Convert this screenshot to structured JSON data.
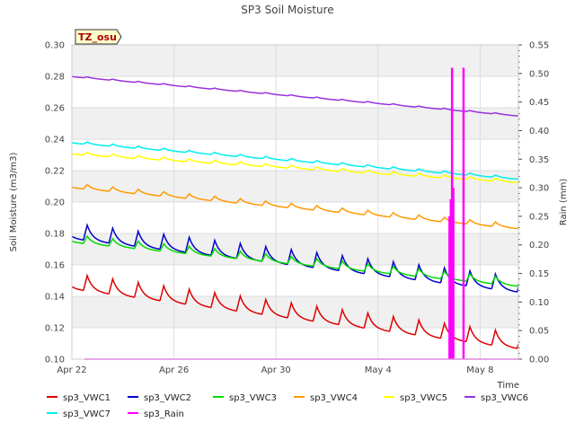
{
  "chart_data": {
    "type": "line",
    "title": "SP3 Soil Moisture",
    "site_label": "TZ_osu",
    "xlabel": "Time",
    "ylabel": "Soil Moisture (m3/m3)",
    "y2label": "Rain (mm)",
    "ylim": [
      0.1,
      0.3
    ],
    "y2lim": [
      0.0,
      0.55
    ],
    "xlim": [
      0,
      17.5
    ],
    "x_ticks": [
      {
        "x": 0,
        "label": "Apr 22"
      },
      {
        "x": 4,
        "label": "Apr 26"
      },
      {
        "x": 8,
        "label": "Apr 30"
      },
      {
        "x": 12,
        "label": "May 4"
      },
      {
        "x": 16,
        "label": "May 8"
      }
    ],
    "y_ticks": [
      "0.10",
      "0.12",
      "0.14",
      "0.16",
      "0.18",
      "0.20",
      "0.22",
      "0.24",
      "0.26",
      "0.28",
      "0.30"
    ],
    "y2_ticks": [
      "0.00",
      "0.05",
      "0.10",
      "0.15",
      "0.20",
      "0.25",
      "0.30",
      "0.35",
      "0.40",
      "0.45",
      "0.50",
      "0.55"
    ],
    "grid": true,
    "legend_position": "bottom",
    "series": [
      {
        "name": "sp3_VWC1",
        "color": "#dd0000",
        "kind": "diurnal",
        "start": 0.148,
        "end": 0.11,
        "amp": 0.01,
        "x": [
          0,
          17.5
        ]
      },
      {
        "name": "sp3_VWC2",
        "color": "#0000cc",
        "kind": "diurnal",
        "start": 0.18,
        "end": 0.146,
        "amp": 0.01,
        "x": [
          0,
          17.5
        ]
      },
      {
        "name": "sp3_VWC3",
        "color": "#00dd00",
        "kind": "diurnal",
        "start": 0.176,
        "end": 0.148,
        "amp": 0.005,
        "x": [
          0,
          17.5
        ]
      },
      {
        "name": "sp3_VWC4",
        "color": "#ff9900",
        "kind": "diurnal",
        "start": 0.21,
        "end": 0.184,
        "amp": 0.003,
        "x": [
          0,
          17.5
        ]
      },
      {
        "name": "sp3_VWC5",
        "color": "#ffff00",
        "kind": "diurnal",
        "start": 0.231,
        "end": 0.213,
        "amp": 0.002,
        "x": [
          0,
          17.5
        ]
      },
      {
        "name": "sp3_VWC6",
        "color": "#9933dd",
        "kind": "diurnal",
        "start": 0.28,
        "end": 0.255,
        "amp": 0.0008,
        "x": [
          0,
          17.5
        ]
      },
      {
        "name": "sp3_VWC7",
        "color": "#00eeee",
        "kind": "diurnal",
        "start": 0.238,
        "end": 0.215,
        "amp": 0.0015,
        "x": [
          0,
          17.5
        ]
      },
      {
        "name": "sp3_Rain",
        "color": "#ff00ff",
        "kind": "rain",
        "axis": "y2",
        "events": [
          {
            "x": 14.8,
            "value": 0.25
          },
          {
            "x": 14.85,
            "value": 0.28
          },
          {
            "x": 14.9,
            "value": 0.51
          },
          {
            "x": 14.95,
            "value": 0.3
          },
          {
            "x": 15.35,
            "value": 0.51
          }
        ]
      }
    ]
  }
}
